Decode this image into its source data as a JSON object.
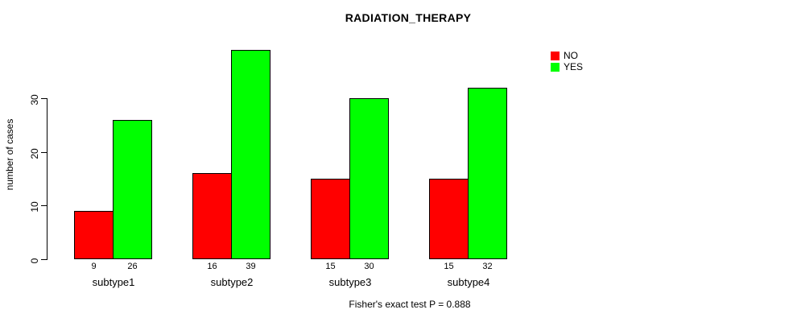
{
  "chart_data": {
    "type": "bar",
    "title": "RADIATION_THERAPY",
    "xlabel": "",
    "ylabel": "number of cases",
    "categories": [
      "subtype1",
      "subtype2",
      "subtype3",
      "subtype4"
    ],
    "series": [
      {
        "name": "NO",
        "color": "#FF0000",
        "values": [
          9,
          16,
          15,
          15
        ]
      },
      {
        "name": "YES",
        "color": "#00FF00",
        "values": [
          26,
          39,
          30,
          32
        ]
      }
    ],
    "yticks": [
      0,
      10,
      20,
      30
    ],
    "ylim": [
      0,
      39
    ],
    "grid": false,
    "legend_position": "top-right",
    "bar_value_labels": {
      "NO": [
        9,
        16,
        15,
        15
      ],
      "YES": [
        26,
        39,
        30,
        32
      ]
    },
    "annotation": "Fisher's exact test P = 0.888"
  }
}
